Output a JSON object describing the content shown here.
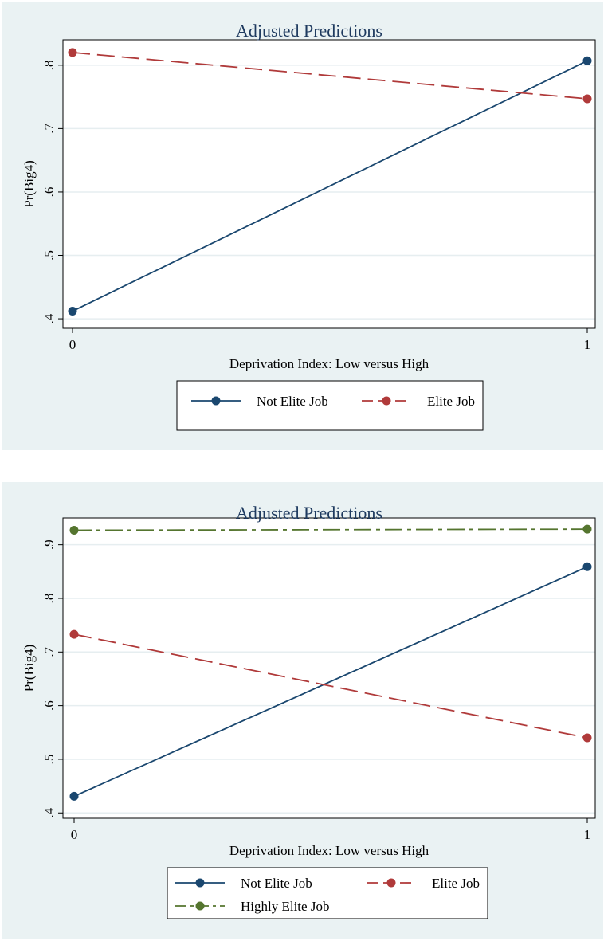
{
  "chart_data": [
    {
      "type": "line",
      "title": "Adjusted Predictions",
      "xlabel": "Deprivation Index: Low versus High",
      "ylabel": "Pr(Big4)",
      "x": [
        0,
        1
      ],
      "xticks": [
        "0",
        "1"
      ],
      "yticks": [
        ".4",
        ".5",
        ".6",
        ".7",
        ".8"
      ],
      "ytick_values": [
        0.4,
        0.5,
        0.6,
        0.7,
        0.8
      ],
      "ylim": [
        0.385,
        0.84
      ],
      "grid": true,
      "legend_position": "bottom",
      "series": [
        {
          "name": "Not Elite Job",
          "values": [
            0.412,
            0.807
          ],
          "color": "#1a476f",
          "dash": "solid"
        },
        {
          "name": "Elite Job",
          "values": [
            0.82,
            0.747
          ],
          "color": "#b03a3a",
          "dash": "dash"
        }
      ]
    },
    {
      "type": "line",
      "title": "Adjusted Predictions",
      "xlabel": "Deprivation Index: Low versus High",
      "ylabel": "Pr(Big4)",
      "x": [
        0,
        1
      ],
      "xticks": [
        "0",
        "1"
      ],
      "yticks": [
        ".4",
        ".5",
        ".6",
        ".7",
        ".8",
        ".9"
      ],
      "ytick_values": [
        0.4,
        0.5,
        0.6,
        0.7,
        0.8,
        0.9
      ],
      "ylim": [
        0.39,
        0.95
      ],
      "grid": true,
      "legend_position": "bottom",
      "series": [
        {
          "name": "Not Elite Job",
          "values": [
            0.431,
            0.859
          ],
          "color": "#1a476f",
          "dash": "solid"
        },
        {
          "name": "Elite Job",
          "values": [
            0.733,
            0.54
          ],
          "color": "#b03a3a",
          "dash": "dash"
        },
        {
          "name": "Highly Elite Job",
          "values": [
            0.927,
            0.929
          ],
          "color": "#55752f",
          "dash": "dashdot"
        }
      ]
    }
  ]
}
